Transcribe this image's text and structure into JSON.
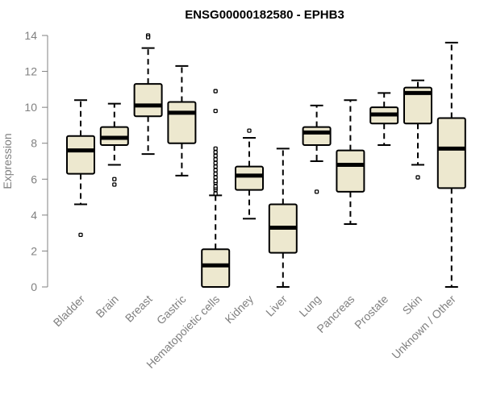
{
  "chart_data": {
    "type": "boxplot",
    "title": "ENSG00000182580 - EPHB3",
    "xlabel": "",
    "ylabel": "Expression",
    "ylim": [
      0,
      14
    ],
    "yticks": [
      "0",
      "2",
      "4",
      "6",
      "8",
      "10",
      "12",
      "14"
    ],
    "grid": false,
    "legend": "none",
    "colors": {
      "box_fill": "#EDE8CF",
      "stroke": "#000000",
      "text": "#808080"
    },
    "categories": [
      "Bladder",
      "Brain",
      "Breast",
      "Gastric",
      "Hematopoietic cells",
      "Kidney",
      "Liver",
      "Lung",
      "Pancreas",
      "Prostate",
      "Skin",
      "Unknown / Other"
    ],
    "boxes": [
      {
        "category": "Bladder",
        "whisker_low": 4.6,
        "q1": 6.3,
        "median": 7.6,
        "q3": 8.4,
        "whisker_high": 10.4,
        "outliers": [
          2.9
        ]
      },
      {
        "category": "Brain",
        "whisker_low": 6.8,
        "q1": 7.9,
        "median": 8.3,
        "q3": 8.9,
        "whisker_high": 10.2,
        "outliers": [
          6.0,
          5.7
        ]
      },
      {
        "category": "Breast",
        "whisker_low": 7.4,
        "q1": 9.5,
        "median": 10.1,
        "q3": 11.3,
        "whisker_high": 13.3,
        "outliers": [
          14.0,
          13.9
        ]
      },
      {
        "category": "Gastric",
        "whisker_low": 6.2,
        "q1": 8.0,
        "median": 9.7,
        "q3": 10.3,
        "whisker_high": 12.3,
        "outliers": []
      },
      {
        "category": "Hematopoietic cells",
        "whisker_low": 0.0,
        "q1": 0.0,
        "median": 1.2,
        "q3": 2.1,
        "whisker_high": 5.1,
        "outliers": [
          5.2,
          5.4,
          5.5,
          5.6,
          5.8,
          5.9,
          6.1,
          6.3,
          6.5,
          6.7,
          6.9,
          7.1,
          7.3,
          7.5,
          7.7,
          9.8,
          10.9
        ]
      },
      {
        "category": "Kidney",
        "whisker_low": 3.8,
        "q1": 5.4,
        "median": 6.2,
        "q3": 6.7,
        "whisker_high": 8.3,
        "outliers": [
          8.7
        ]
      },
      {
        "category": "Liver",
        "whisker_low": 0.0,
        "q1": 1.9,
        "median": 3.3,
        "q3": 4.6,
        "whisker_high": 7.7,
        "outliers": []
      },
      {
        "category": "Lung",
        "whisker_low": 7.0,
        "q1": 7.9,
        "median": 8.6,
        "q3": 8.9,
        "whisker_high": 10.1,
        "outliers": [
          5.3
        ]
      },
      {
        "category": "Pancreas",
        "whisker_low": 3.5,
        "q1": 5.3,
        "median": 6.8,
        "q3": 7.6,
        "whisker_high": 10.4,
        "outliers": []
      },
      {
        "category": "Prostate",
        "whisker_low": 7.9,
        "q1": 9.1,
        "median": 9.6,
        "q3": 10.0,
        "whisker_high": 10.8,
        "outliers": []
      },
      {
        "category": "Skin",
        "whisker_low": 6.8,
        "q1": 9.1,
        "median": 10.8,
        "q3": 11.1,
        "whisker_high": 11.5,
        "outliers": [
          6.1
        ]
      },
      {
        "category": "Unknown / Other",
        "whisker_low": 0.0,
        "q1": 5.5,
        "median": 7.7,
        "q3": 9.4,
        "whisker_high": 13.6,
        "outliers": []
      }
    ]
  }
}
